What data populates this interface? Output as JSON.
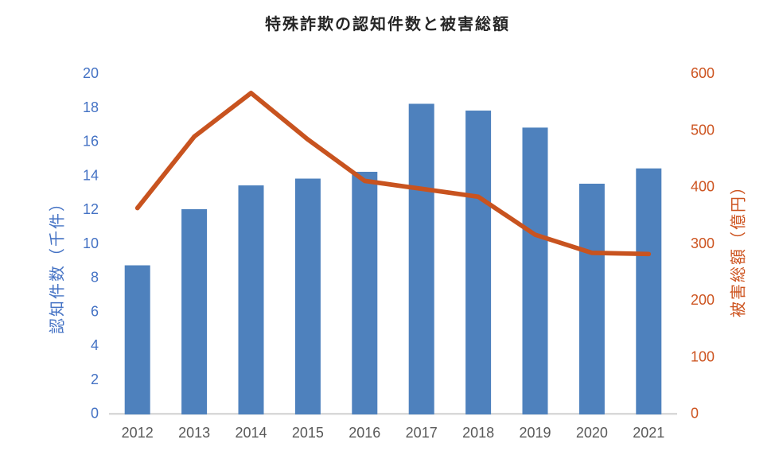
{
  "chart_data": {
    "type": "bar",
    "subtype": "combo-bar-line-dual-axis",
    "title": "特殊詐欺の認知件数と被害総額",
    "categories": [
      "2012",
      "2013",
      "2014",
      "2015",
      "2016",
      "2017",
      "2018",
      "2019",
      "2020",
      "2021"
    ],
    "series": [
      {
        "name": "認知件数（千件）",
        "render": "bar",
        "axis": "left",
        "values": [
          8.7,
          12.0,
          13.4,
          13.8,
          14.2,
          18.2,
          17.8,
          16.8,
          13.5,
          14.4
        ],
        "color": "#4e81bd"
      },
      {
        "name": "被害総額（億円）",
        "render": "line",
        "axis": "right",
        "values": [
          362,
          488,
          565,
          483,
          410,
          396,
          382,
          315,
          283,
          281
        ],
        "color": "#c8531f"
      }
    ],
    "left_axis": {
      "title": "認知件数（千件）",
      "min": 0,
      "max": 20,
      "step": 2,
      "ticks": [
        "0",
        "2",
        "4",
        "6",
        "8",
        "10",
        "12",
        "14",
        "16",
        "18",
        "20"
      ],
      "label_color": "#4472c4"
    },
    "right_axis": {
      "title": "被害総額（億円）",
      "min": 0,
      "max": 600,
      "step": 100,
      "ticks": [
        "0",
        "100",
        "200",
        "300",
        "400",
        "500",
        "600"
      ],
      "label_color": "#cd5420"
    },
    "x_axis": {
      "label_color": "#595959",
      "line_color": "#d9d9d9"
    },
    "legend": "none",
    "gridlines": "off",
    "title_color": "#262626"
  }
}
